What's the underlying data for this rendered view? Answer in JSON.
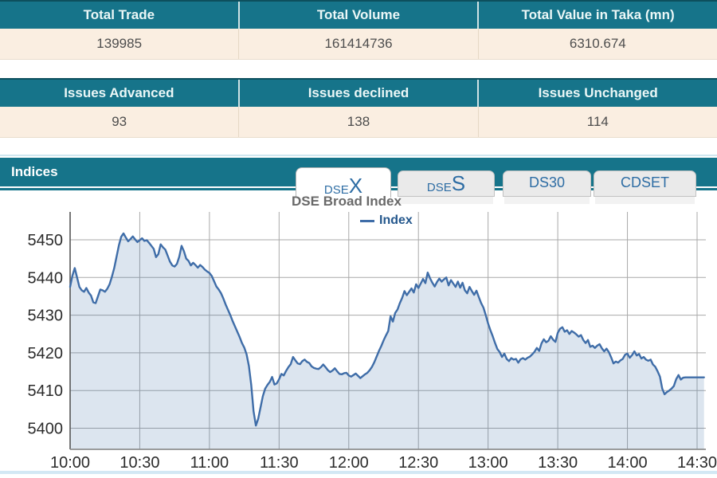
{
  "colors": {
    "header_teal": "#16748a",
    "header_top_border": "#0d4f5d",
    "row_peach": "#faeee1",
    "tab_text_blue": "#2e6da4",
    "line_blue": "#3f6da8",
    "fill_blue": "rgba(63,109,168,0.18)",
    "grid_gray": "#a9a9a9",
    "axis_line_gray": "#8f8f8f",
    "axis_label_dark": "#2b2b2b",
    "legend_text_blue": "#25588d",
    "title_gray": "#696969"
  },
  "summary_table": {
    "headers": [
      "Total Trade",
      "Total Volume",
      "Total Value in Taka (mn)"
    ],
    "values": [
      "139985",
      "161414736",
      "6310.674"
    ]
  },
  "issues_table": {
    "headers": [
      "Issues Advanced",
      "Issues declined",
      "Issues Unchanged"
    ],
    "values": [
      "93",
      "138",
      "114"
    ]
  },
  "indices": {
    "section_title": "Indices",
    "tabs": [
      {
        "small": "DSE",
        "big": "X",
        "active": true
      },
      {
        "small": "DSE",
        "big": "S",
        "active": false
      },
      {
        "label": "DS30",
        "active": false
      },
      {
        "label": "CDSET",
        "active": false
      }
    ]
  },
  "chart_data": {
    "type": "area",
    "title": "DSE Broad Index",
    "xlabel": "",
    "ylabel": "",
    "grid": true,
    "legend_position": "top-center",
    "legend": [
      {
        "name": "Index"
      }
    ],
    "x_tick_labels": [
      "10:00",
      "10:30",
      "11:00",
      "11:30",
      "12:00",
      "12:30",
      "13:00",
      "13:30",
      "14:00",
      "14:30"
    ],
    "x_tick_minutes": [
      0,
      30,
      60,
      90,
      120,
      150,
      180,
      210,
      240,
      270
    ],
    "y_ticks": [
      5400,
      5410,
      5420,
      5430,
      5440,
      5450
    ],
    "ylim": [
      5394,
      5457
    ],
    "series": [
      {
        "name": "Index",
        "minutes_start": 0,
        "minutes_step": 1,
        "values": [
          5437.5,
          5440.5,
          5442.5,
          5440.0,
          5437.5,
          5436.6,
          5436.2,
          5437.2,
          5436.0,
          5435.2,
          5433.4,
          5433.2,
          5435.0,
          5436.8,
          5436.6,
          5436.2,
          5437.0,
          5438.2,
          5440.2,
          5442.5,
          5445.5,
          5448.5,
          5450.8,
          5451.7,
          5450.6,
          5449.6,
          5450.2,
          5450.9,
          5450.1,
          5449.4,
          5449.9,
          5450.4,
          5449.7,
          5449.9,
          5449.2,
          5448.4,
          5447.6,
          5445.4,
          5446.2,
          5448.8,
          5448.0,
          5447.4,
          5445.8,
          5444.2,
          5443.2,
          5442.9,
          5443.6,
          5445.5,
          5448.4,
          5447.0,
          5445.0,
          5444.4,
          5443.2,
          5443.9,
          5443.3,
          5442.6,
          5443.3,
          5442.8,
          5442.1,
          5441.6,
          5441.2,
          5440.4,
          5439.0,
          5437.6,
          5436.8,
          5435.8,
          5434.4,
          5432.8,
          5431.4,
          5430.0,
          5428.4,
          5427.0,
          5425.6,
          5424.2,
          5422.6,
          5421.4,
          5419.6,
          5416.5,
          5411.5,
          5404.5,
          5400.7,
          5402.5,
          5405.5,
          5408.5,
          5410.5,
          5411.5,
          5412.3,
          5413.6,
          5411.6,
          5411.9,
          5413.0,
          5414.4,
          5414.0,
          5415.2,
          5416.2,
          5417.0,
          5418.9,
          5418.0,
          5417.2,
          5417.0,
          5417.8,
          5418.2,
          5417.6,
          5417.3,
          5416.4,
          5416.0,
          5415.8,
          5415.7,
          5416.2,
          5416.9,
          5416.2,
          5415.4,
          5414.9,
          5415.3,
          5415.9,
          5415.1,
          5414.4,
          5414.3,
          5414.6,
          5414.7,
          5414.0,
          5413.7,
          5414.1,
          5414.5,
          5413.9,
          5413.3,
          5413.8,
          5414.3,
          5414.7,
          5415.4,
          5416.3,
          5417.5,
          5419.0,
          5420.5,
          5421.8,
          5423.3,
          5424.6,
          5425.8,
          5429.7,
          5428.3,
          5430.6,
          5431.5,
          5433.2,
          5434.6,
          5436.4,
          5435.3,
          5436.2,
          5437.1,
          5436.0,
          5438.2,
          5437.2,
          5438.4,
          5439.6,
          5438.5,
          5441.3,
          5439.8,
          5438.6,
          5437.6,
          5438.8,
          5439.7,
          5438.9,
          5439.5,
          5440.0,
          5437.9,
          5439.3,
          5438.4,
          5437.5,
          5438.9,
          5437.3,
          5438.6,
          5436.6,
          5435.8,
          5437.5,
          5436.4,
          5435.4,
          5436.5,
          5434.8,
          5433.2,
          5432.0,
          5430.0,
          5427.8,
          5426.0,
          5424.4,
          5422.6,
          5421.0,
          5420.2,
          5418.9,
          5419.8,
          5418.4,
          5417.8,
          5418.6,
          5418.2,
          5418.4,
          5417.4,
          5418.3,
          5418.6,
          5418.2,
          5418.7,
          5419.0,
          5419.6,
          5420.3,
          5421.3,
          5420.5,
          5422.5,
          5423.6,
          5422.8,
          5423.2,
          5424.4,
          5423.5,
          5422.9,
          5425.3,
          5426.4,
          5426.8,
          5425.6,
          5426.0,
          5425.0,
          5425.8,
          5425.4,
          5424.9,
          5424.3,
          5424.7,
          5423.4,
          5422.6,
          5423.4,
          5421.6,
          5421.9,
          5421.3,
          5421.9,
          5422.3,
          5421.2,
          5420.4,
          5421.1,
          5420.2,
          5418.8,
          5417.2,
          5417.7,
          5417.4,
          5418.0,
          5418.4,
          5419.5,
          5419.8,
          5418.7,
          5419.4,
          5420.4,
          5419.3,
          5419.7,
          5418.5,
          5418.9,
          5418.2,
          5417.9,
          5418.2,
          5416.9,
          5416.3,
          5415.1,
          5413.7,
          5410.5,
          5409.0,
          5409.6,
          5410.0,
          5410.5,
          5411.2,
          5413.0,
          5414.1,
          5412.9,
          5413.4,
          5413.5,
          5413.5,
          5413.5,
          5413.5,
          5413.5,
          5413.5,
          5413.5,
          5413.5,
          5413.5
        ]
      }
    ]
  }
}
